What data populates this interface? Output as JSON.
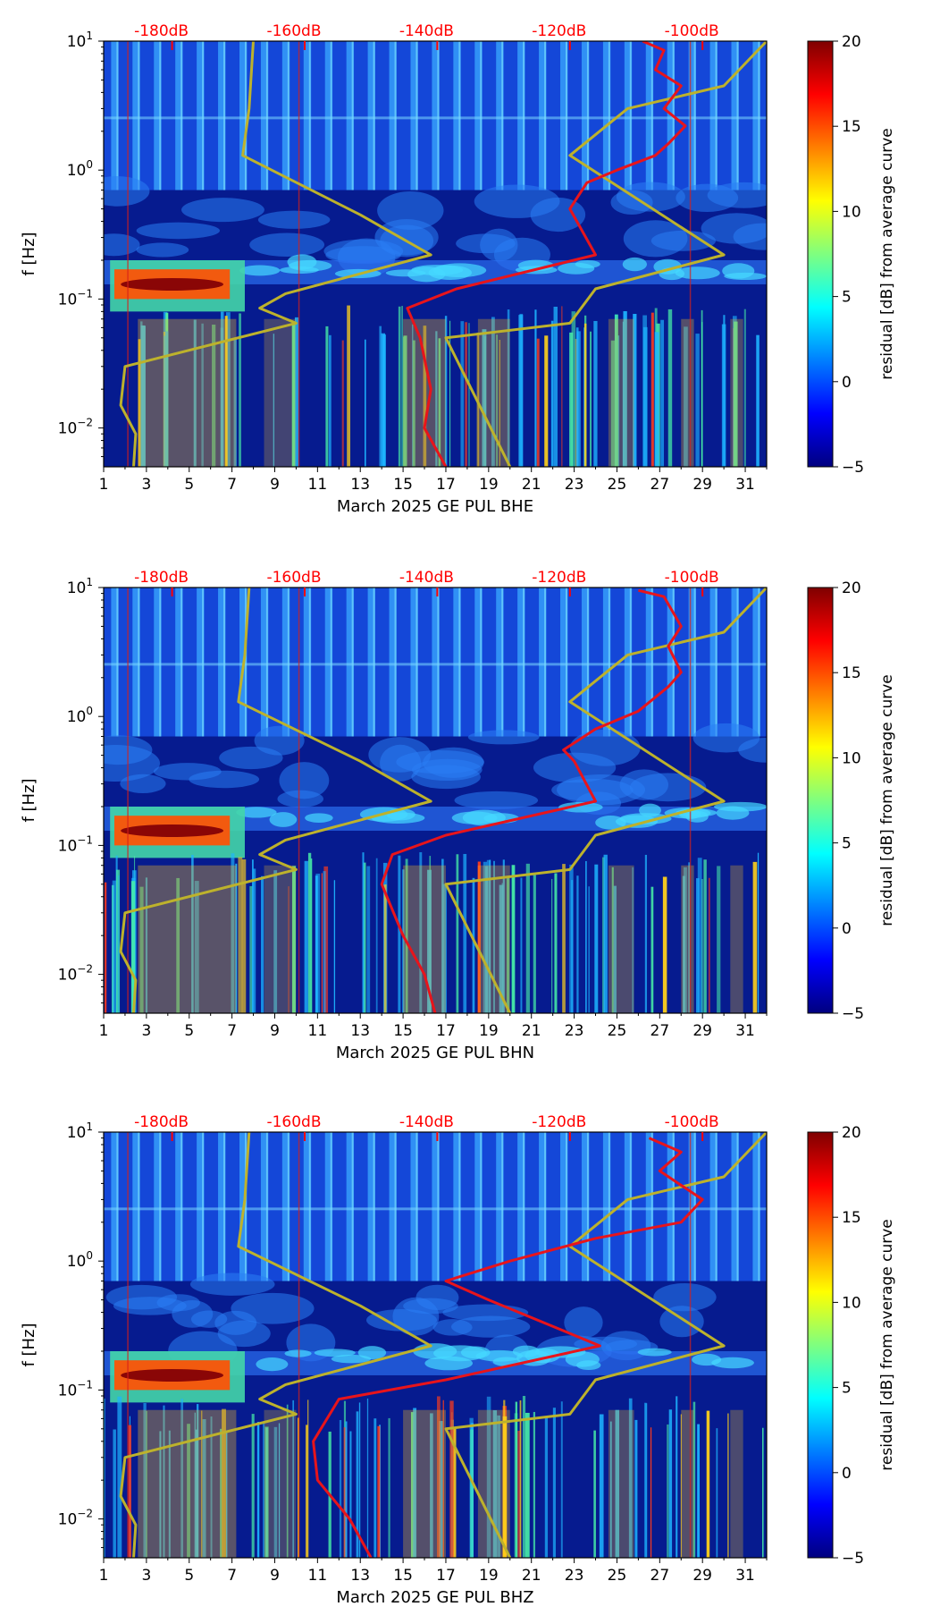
{
  "colors": {
    "red_curve": "#e8141b",
    "yellow_curve": "#bdb22c",
    "db_label": "#ff0000",
    "background_band": "#0b2fc0"
  },
  "colormap": {
    "name": "jet",
    "stops": [
      "#00007f",
      "#0000ff",
      "#007fff",
      "#00ffff",
      "#7fff7f",
      "#ffff00",
      "#ff7f00",
      "#ff0000",
      "#7f0000"
    ]
  },
  "chart_data": [
    {
      "type": "heatmap",
      "channel": "BHE",
      "xlabel": "March 2025 GE PUL  BHE",
      "ylabel": "f [Hz]",
      "xlim": [
        1,
        32
      ],
      "ylim": [
        0.005,
        10
      ],
      "x_ticks": [
        "1",
        "3",
        "5",
        "7",
        "9",
        "11",
        "13",
        "15",
        "17",
        "19",
        "21",
        "23",
        "25",
        "27",
        "29",
        "31"
      ],
      "y_ticks": [
        {
          "base": "10",
          "exp": "1",
          "value": 10
        },
        {
          "base": "10",
          "exp": "0",
          "value": 1
        },
        {
          "base": "10",
          "exp": "−1",
          "value": 0.1
        },
        {
          "base": "10",
          "exp": "−2",
          "value": 0.01
        }
      ],
      "db_scale": [
        "-180dB",
        "-160dB",
        "-140dB",
        "-120dB",
        "-100dB"
      ],
      "db_scale_days": [
        4.2,
        10.4,
        16.6,
        22.8,
        29.0
      ],
      "colorbar": {
        "label": "residual [dB] from average curve",
        "min": -5,
        "max": 20,
        "ticks": [
          "20",
          "15",
          "10",
          "5",
          "0",
          "−5"
        ],
        "tick_values": [
          20,
          15,
          10,
          5,
          0,
          -5
        ]
      },
      "median_psd_curve": [
        [
          26.2,
          10
        ],
        [
          27.2,
          8.5
        ],
        [
          26.8,
          6
        ],
        [
          28.0,
          4.5
        ],
        [
          27.2,
          3
        ],
        [
          28.2,
          2.2
        ],
        [
          27.4,
          1.6
        ],
        [
          26.8,
          1.3
        ],
        [
          25.0,
          1.0
        ],
        [
          23.6,
          0.8
        ],
        [
          22.8,
          0.5
        ],
        [
          24.0,
          0.22
        ],
        [
          17.5,
          0.12
        ],
        [
          15.2,
          0.085
        ],
        [
          15.8,
          0.05
        ],
        [
          16.3,
          0.02
        ],
        [
          16.0,
          0.01
        ],
        [
          17.0,
          0.005
        ]
      ],
      "noise_model_curve": [
        [
          8.0,
          10
        ],
        [
          7.8,
          3
        ],
        [
          7.5,
          1.3
        ],
        [
          13.0,
          0.45
        ],
        [
          16.3,
          0.22
        ],
        [
          9.5,
          0.11
        ],
        [
          8.3,
          0.085
        ],
        [
          10.0,
          0.065
        ],
        [
          2.0,
          0.03
        ],
        [
          1.8,
          0.015
        ],
        [
          2.5,
          0.009
        ],
        [
          2.4,
          0.005
        ]
      ],
      "noise_model_curve_2": [
        [
          32.0,
          10
        ],
        [
          30.0,
          4.5
        ],
        [
          25.5,
          3.0
        ],
        [
          22.8,
          1.3
        ],
        [
          30.0,
          0.22
        ],
        [
          24.0,
          0.12
        ],
        [
          22.8,
          0.065
        ],
        [
          17.0,
          0.05
        ],
        [
          20.0,
          0.005
        ]
      ]
    },
    {
      "type": "heatmap",
      "channel": "BHN",
      "xlabel": "March 2025 GE PUL  BHN",
      "ylabel": "f [Hz]",
      "xlim": [
        1,
        32
      ],
      "ylim": [
        0.005,
        10
      ],
      "x_ticks": [
        "1",
        "3",
        "5",
        "7",
        "9",
        "11",
        "13",
        "15",
        "17",
        "19",
        "21",
        "23",
        "25",
        "27",
        "29",
        "31"
      ],
      "y_ticks": [
        {
          "base": "10",
          "exp": "1",
          "value": 10
        },
        {
          "base": "10",
          "exp": "0",
          "value": 1
        },
        {
          "base": "10",
          "exp": "−1",
          "value": 0.1
        },
        {
          "base": "10",
          "exp": "−2",
          "value": 0.01
        }
      ],
      "db_scale": [
        "-180dB",
        "-160dB",
        "-140dB",
        "-120dB",
        "-100dB"
      ],
      "db_scale_days": [
        4.2,
        10.4,
        16.6,
        22.8,
        29.0
      ],
      "colorbar": {
        "label": "residual [dB] from average curve",
        "min": -5,
        "max": 20,
        "ticks": [
          "20",
          "15",
          "10",
          "5",
          "0",
          "−5"
        ],
        "tick_values": [
          20,
          15,
          10,
          5,
          0,
          -5
        ]
      },
      "median_psd_curve": [
        [
          26.0,
          9.5
        ],
        [
          27.2,
          8.5
        ],
        [
          28.0,
          5
        ],
        [
          27.4,
          3.5
        ],
        [
          28.0,
          2.2
        ],
        [
          27.4,
          1.7
        ],
        [
          26.0,
          1.1
        ],
        [
          24.0,
          0.8
        ],
        [
          22.5,
          0.55
        ],
        [
          23.0,
          0.45
        ],
        [
          24.0,
          0.22
        ],
        [
          17.0,
          0.12
        ],
        [
          14.5,
          0.085
        ],
        [
          14.0,
          0.05
        ],
        [
          15.0,
          0.02
        ],
        [
          16.0,
          0.01
        ],
        [
          16.5,
          0.005
        ]
      ],
      "noise_model_curve": [
        [
          7.8,
          10
        ],
        [
          7.6,
          3
        ],
        [
          7.3,
          1.3
        ],
        [
          13.0,
          0.45
        ],
        [
          16.3,
          0.22
        ],
        [
          9.5,
          0.11
        ],
        [
          8.3,
          0.085
        ],
        [
          10.0,
          0.065
        ],
        [
          2.0,
          0.03
        ],
        [
          1.8,
          0.015
        ],
        [
          2.5,
          0.009
        ],
        [
          2.4,
          0.005
        ]
      ],
      "noise_model_curve_2": [
        [
          32.0,
          10
        ],
        [
          30.0,
          4.5
        ],
        [
          25.5,
          3.0
        ],
        [
          22.8,
          1.3
        ],
        [
          30.0,
          0.22
        ],
        [
          24.0,
          0.12
        ],
        [
          22.8,
          0.065
        ],
        [
          17.0,
          0.05
        ],
        [
          20.0,
          0.005
        ]
      ]
    },
    {
      "type": "heatmap",
      "channel": "BHZ",
      "xlabel": "March 2025 GE PUL  BHZ",
      "ylabel": "f [Hz]",
      "xlim": [
        1,
        32
      ],
      "ylim": [
        0.005,
        10
      ],
      "x_ticks": [
        "1",
        "3",
        "5",
        "7",
        "9",
        "11",
        "13",
        "15",
        "17",
        "19",
        "21",
        "23",
        "25",
        "27",
        "29",
        "31"
      ],
      "y_ticks": [
        {
          "base": "10",
          "exp": "1",
          "value": 10
        },
        {
          "base": "10",
          "exp": "0",
          "value": 1
        },
        {
          "base": "10",
          "exp": "−1",
          "value": 0.1
        },
        {
          "base": "10",
          "exp": "−2",
          "value": 0.01
        }
      ],
      "db_scale": [
        "-180dB",
        "-160dB",
        "-140dB",
        "-120dB",
        "-100dB"
      ],
      "db_scale_days": [
        4.2,
        10.4,
        16.6,
        22.8,
        29.0
      ],
      "colorbar": {
        "label": "residual [dB] from average curve",
        "min": -5,
        "max": 20,
        "ticks": [
          "20",
          "15",
          "10",
          "5",
          "0",
          "−5"
        ],
        "tick_values": [
          20,
          15,
          10,
          5,
          0,
          -5
        ]
      },
      "median_psd_curve": [
        [
          26.5,
          9
        ],
        [
          28.0,
          7
        ],
        [
          27.0,
          5.0
        ],
        [
          29.0,
          3.0
        ],
        [
          28.0,
          2.0
        ],
        [
          24.0,
          1.5
        ],
        [
          20.0,
          1.0
        ],
        [
          17.0,
          0.7
        ],
        [
          19.0,
          0.5
        ],
        [
          24.2,
          0.22
        ],
        [
          17.0,
          0.12
        ],
        [
          12.0,
          0.085
        ],
        [
          10.8,
          0.04
        ],
        [
          11.0,
          0.02
        ],
        [
          12.5,
          0.01
        ],
        [
          13.5,
          0.005
        ]
      ],
      "noise_model_curve": [
        [
          7.8,
          10
        ],
        [
          7.6,
          3
        ],
        [
          7.3,
          1.3
        ],
        [
          13.0,
          0.45
        ],
        [
          16.3,
          0.22
        ],
        [
          9.5,
          0.11
        ],
        [
          8.3,
          0.085
        ],
        [
          10.0,
          0.065
        ],
        [
          2.0,
          0.03
        ],
        [
          1.8,
          0.015
        ],
        [
          2.5,
          0.009
        ],
        [
          2.4,
          0.005
        ]
      ],
      "noise_model_curve_2": [
        [
          32.0,
          10
        ],
        [
          30.0,
          4.5
        ],
        [
          25.5,
          3.0
        ],
        [
          22.8,
          1.3
        ],
        [
          30.0,
          0.22
        ],
        [
          24.0,
          0.12
        ],
        [
          22.8,
          0.065
        ],
        [
          17.0,
          0.05
        ],
        [
          20.0,
          0.005
        ]
      ]
    }
  ]
}
